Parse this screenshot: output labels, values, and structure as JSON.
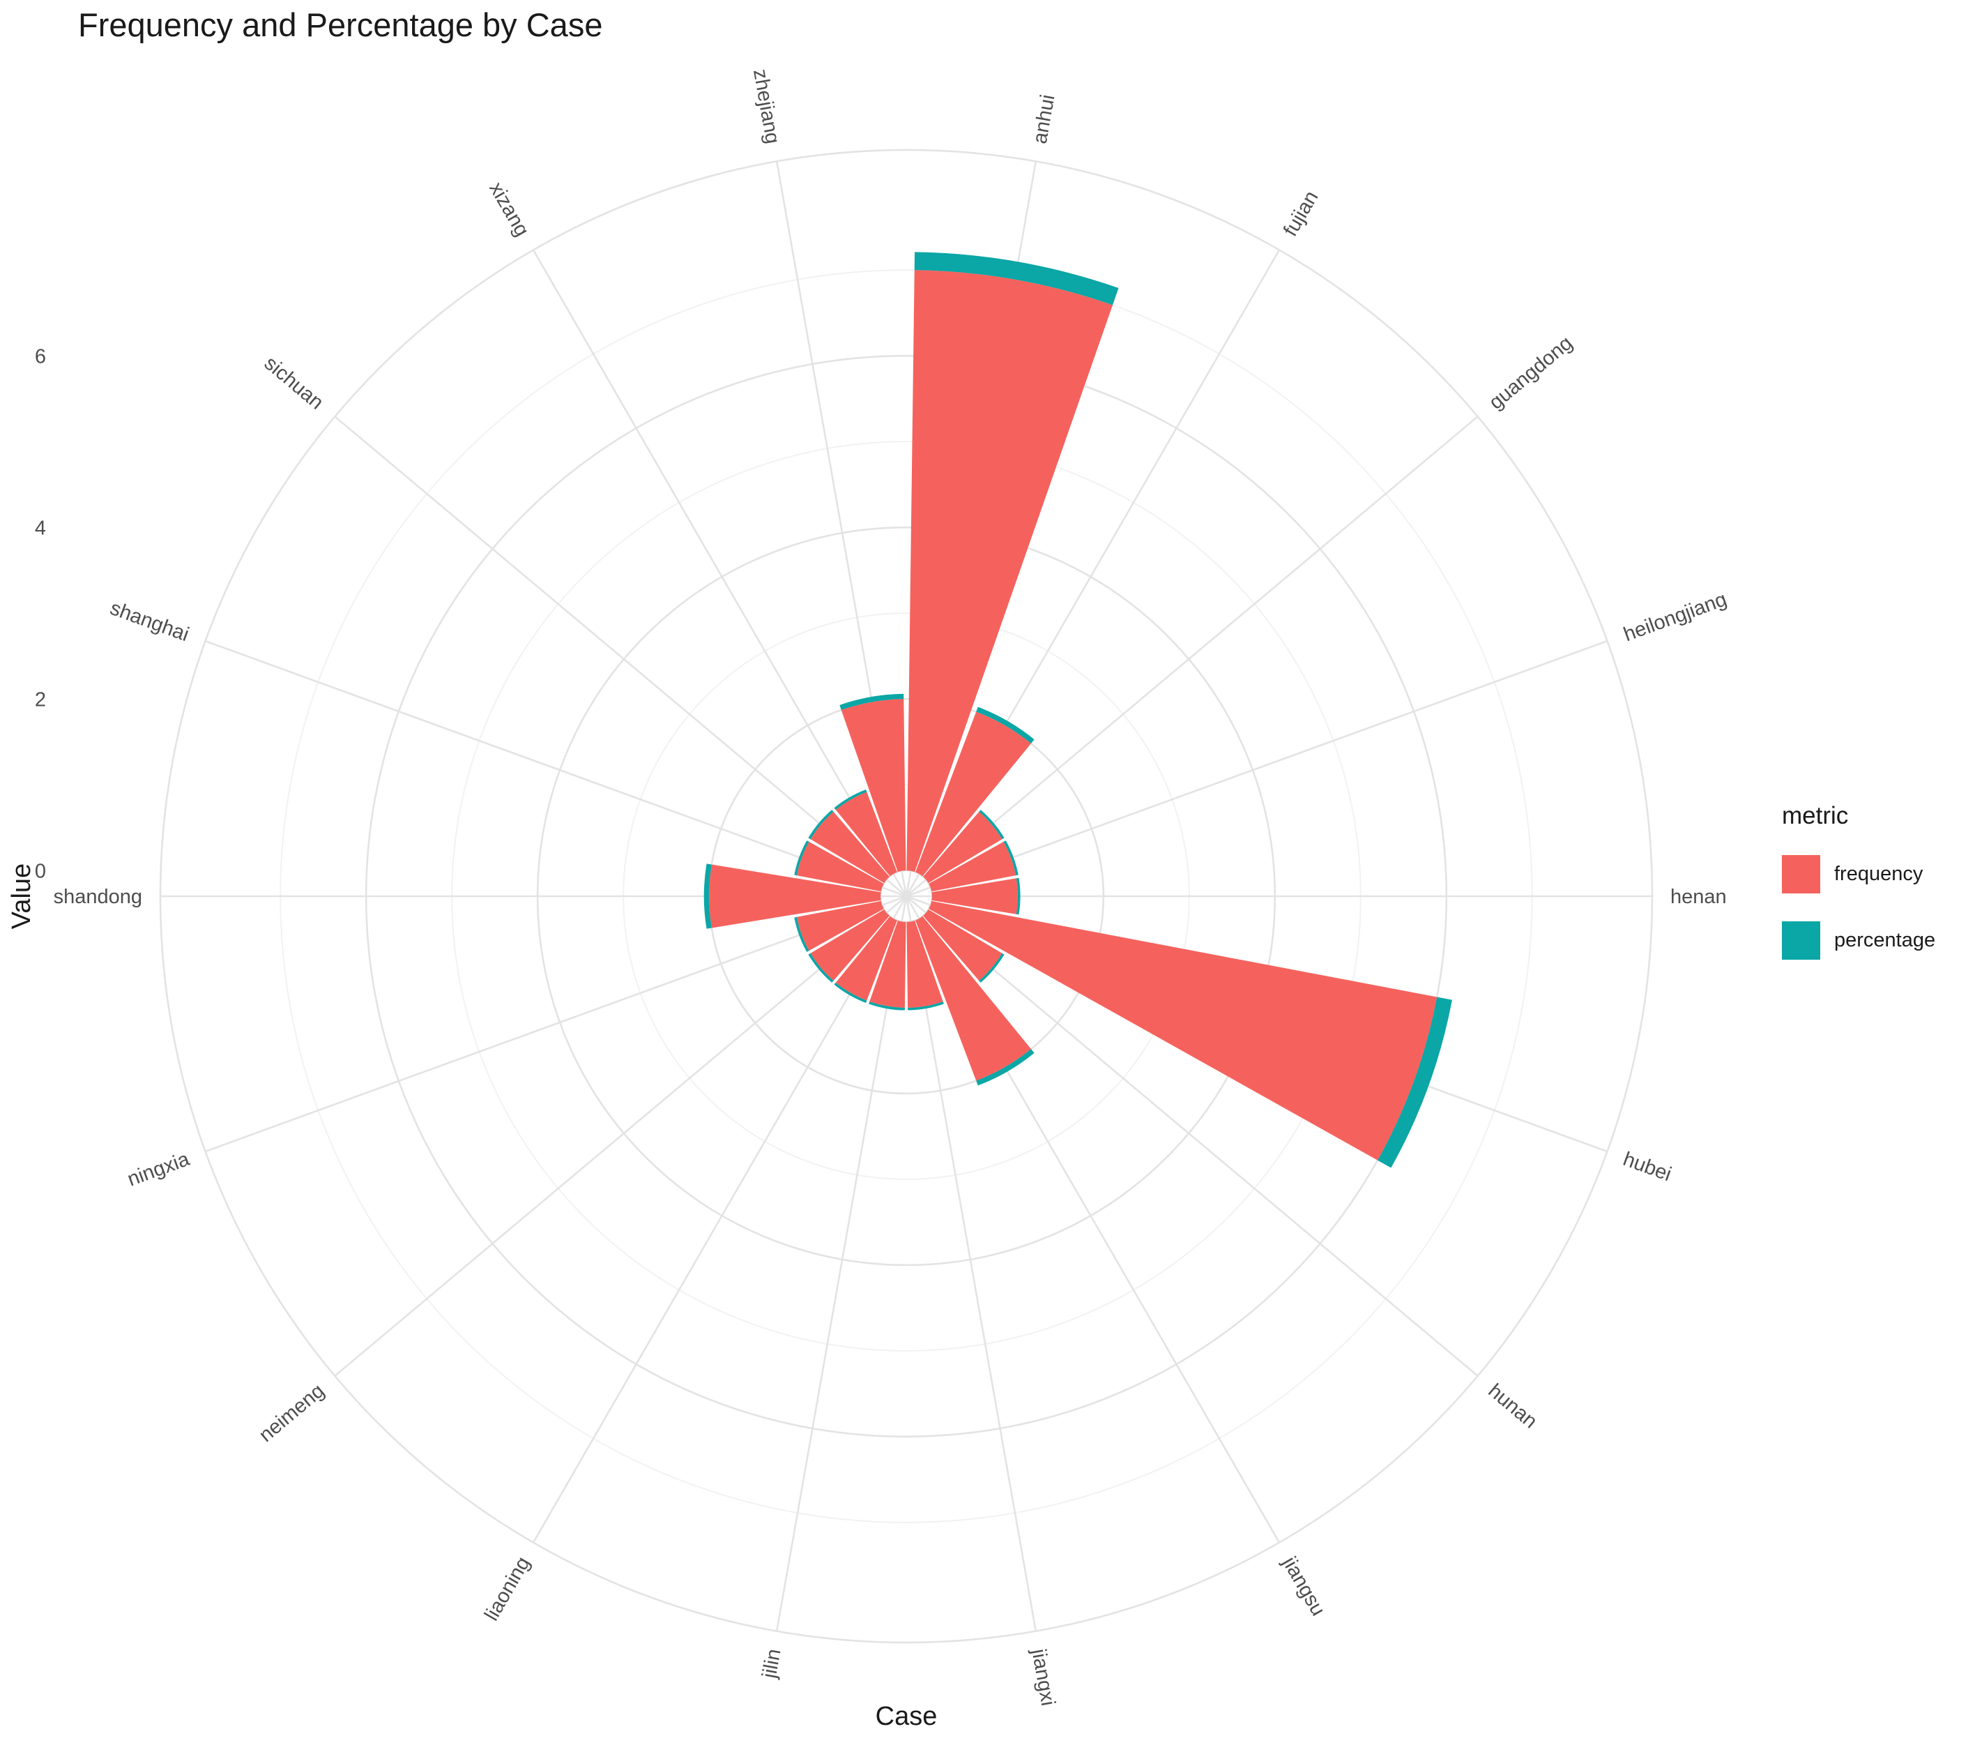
{
  "title": "Frequency and Percentage by Case",
  "x_axis_title": "Case",
  "y_axis_title": "Value",
  "legend": {
    "title": "metric",
    "items": [
      {
        "label": "frequency",
        "color": "#F5625D"
      },
      {
        "label": "percentage",
        "color": "#0BA6A6"
      }
    ]
  },
  "chart_data": {
    "type": "bar",
    "coordinates": "polar",
    "stacked": true,
    "title": "Frequency and Percentage by Case",
    "xlabel": "Case",
    "ylabel": "Value",
    "categories": [
      "anhui",
      "fujian",
      "guangdong",
      "heilongjiang",
      "henan",
      "hubei",
      "hunan",
      "jiangsu",
      "jiangxi",
      "jilin",
      "liaoning",
      "neimeng",
      "ningxia",
      "shandong",
      "shanghai",
      "sichuan",
      "xizang",
      "zhejiang"
    ],
    "series": [
      {
        "name": "frequency",
        "color": "#F5625D",
        "values": [
          7,
          2,
          1,
          1,
          1,
          6,
          1,
          2,
          1,
          1,
          1,
          1,
          1,
          2,
          1,
          1,
          1,
          2
        ]
      },
      {
        "name": "percentage",
        "color": "#0BA6A6",
        "values": [
          0.21,
          0.06,
          0.03,
          0.03,
          0.03,
          0.18,
          0.03,
          0.06,
          0.03,
          0.03,
          0.03,
          0.03,
          0.03,
          0.06,
          0.03,
          0.03,
          0.03,
          0.06
        ]
      }
    ],
    "r_axis": {
      "ticks": [
        0,
        2,
        4,
        6
      ],
      "panel_min": -0.3,
      "panel_max": 8.4
    },
    "theta": {
      "start_deg": 10,
      "step_deg": 20,
      "bar_width_deg": 18.5
    },
    "grid": true,
    "legend_position": "right"
  }
}
